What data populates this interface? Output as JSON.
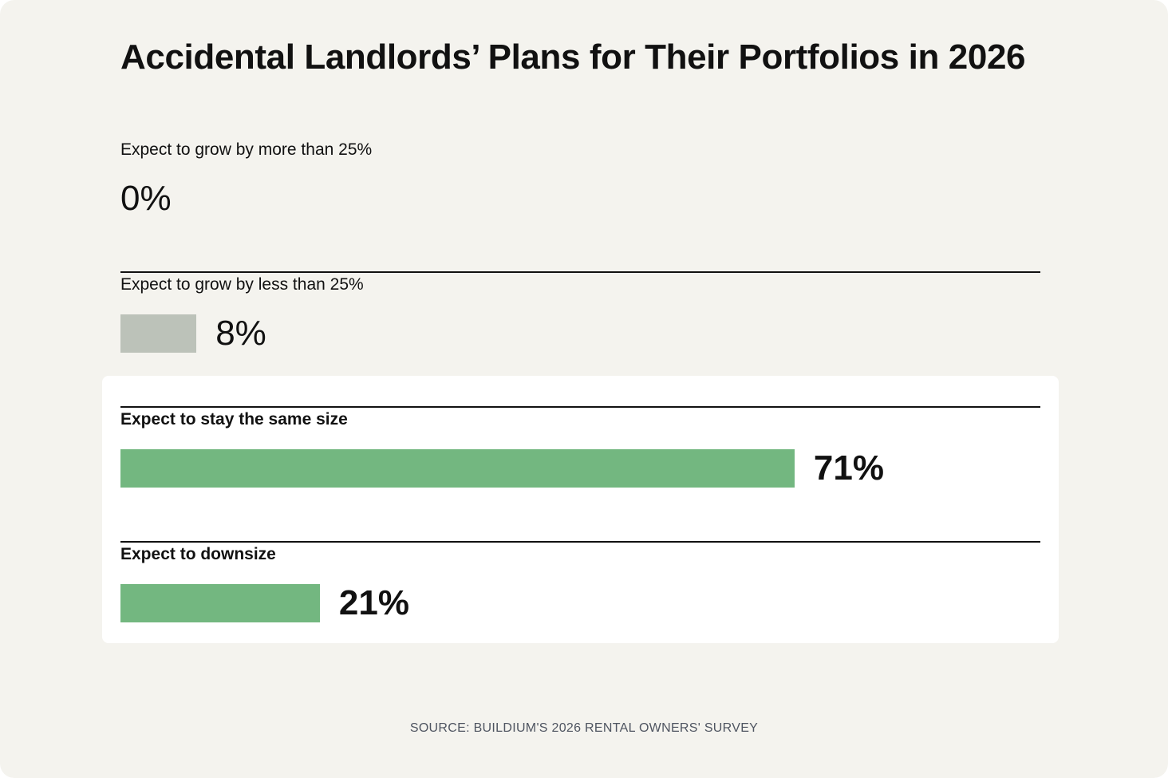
{
  "chart_data": {
    "type": "bar",
    "orientation": "horizontal",
    "title": "Accidental Landlords’ Plans for Their Portfolios in 2026",
    "categories": [
      "Expect to grow by more than 25%",
      "Expect to grow by less than 25%",
      "Expect to stay the same size",
      "Expect to downsize"
    ],
    "values": [
      0,
      8,
      71,
      21
    ],
    "value_labels": [
      "0%",
      "8%",
      "71%",
      "21%"
    ],
    "highlighted": [
      false,
      false,
      true,
      true
    ],
    "xlim": [
      0,
      100
    ],
    "unit": "%",
    "grid": false,
    "legend": "none",
    "source": "SOURCE: BUILDIUM'S 2026 RENTAL OWNERS' SURVEY",
    "colors": {
      "muted_bar": "#bcc2b9",
      "highlight_bar": "#73b780",
      "background": "#f4f3ee",
      "highlight_panel": "#ffffff",
      "text": "#111111",
      "source_text": "#4f5561"
    }
  }
}
